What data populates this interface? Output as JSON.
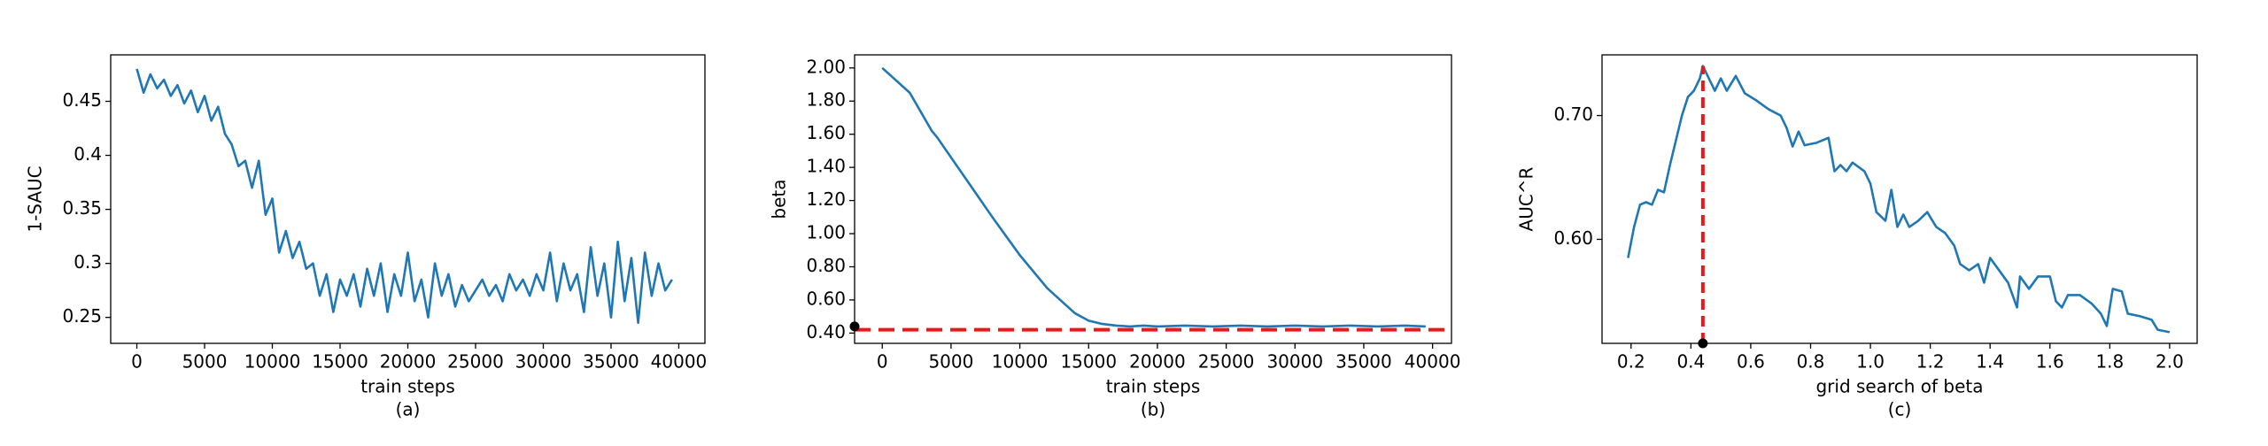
{
  "chart_data": [
    {
      "type": "line",
      "xlabel": "train steps",
      "ylabel": "1-SAUC",
      "caption": "(a)",
      "xlim": [
        -1930,
        41930
      ],
      "ylim": [
        0.226,
        0.493
      ],
      "xticks": [
        0,
        5000,
        10000,
        15000,
        20000,
        25000,
        30000,
        35000,
        40000
      ],
      "yticks": [
        0.25,
        0.3,
        0.35,
        0.4,
        0.45
      ],
      "color": "#1f77b4",
      "x": [
        0,
        500,
        1000,
        1500,
        2000,
        2500,
        3000,
        3500,
        4000,
        4500,
        5000,
        5500,
        6000,
        6500,
        7000,
        7500,
        8000,
        8500,
        9000,
        9500,
        10000,
        10500,
        11000,
        11500,
        12000,
        12500,
        13000,
        13500,
        14000,
        14500,
        15000,
        15500,
        16000,
        16500,
        17000,
        17500,
        18000,
        18500,
        19000,
        19500,
        20000,
        20500,
        21000,
        21500,
        22000,
        22500,
        23000,
        23500,
        24000,
        24500,
        25000,
        25500,
        26000,
        26500,
        27000,
        27500,
        28000,
        28500,
        29000,
        29500,
        30000,
        30500,
        31000,
        31500,
        32000,
        32500,
        33000,
        33500,
        34000,
        34500,
        35000,
        35500,
        36000,
        36500,
        37000,
        37500,
        38000,
        38500,
        39000,
        39500
      ],
      "values": [
        0.48,
        0.458,
        0.475,
        0.462,
        0.47,
        0.455,
        0.465,
        0.448,
        0.46,
        0.44,
        0.455,
        0.432,
        0.445,
        0.42,
        0.41,
        0.39,
        0.395,
        0.37,
        0.395,
        0.345,
        0.36,
        0.31,
        0.33,
        0.305,
        0.32,
        0.295,
        0.3,
        0.27,
        0.29,
        0.255,
        0.285,
        0.27,
        0.29,
        0.26,
        0.295,
        0.27,
        0.3,
        0.255,
        0.29,
        0.27,
        0.31,
        0.265,
        0.285,
        0.25,
        0.3,
        0.27,
        0.29,
        0.26,
        0.28,
        0.265,
        0.275,
        0.285,
        0.27,
        0.28,
        0.265,
        0.29,
        0.275,
        0.285,
        0.27,
        0.29,
        0.275,
        0.31,
        0.265,
        0.3,
        0.275,
        0.29,
        0.255,
        0.315,
        0.27,
        0.3,
        0.25,
        0.32,
        0.265,
        0.305,
        0.245,
        0.31,
        0.27,
        0.3,
        0.275,
        0.285
      ]
    },
    {
      "type": "line",
      "xlabel": "train steps",
      "ylabel": "beta",
      "caption": "(b)",
      "xlim": [
        -2011,
        41376
      ],
      "ylim": [
        0.338,
        2.079
      ],
      "xticks": [
        0,
        5000,
        10000,
        15000,
        20000,
        25000,
        30000,
        35000,
        40000
      ],
      "yticks": [
        {
          "value": 0.4,
          "label": "0.40"
        },
        {
          "value": 0.6,
          "label": "0.60"
        },
        {
          "value": 0.8,
          "label": "0.80"
        },
        {
          "value": 1.0,
          "label": "1.00"
        },
        {
          "value": 1.2,
          "label": "1.20"
        },
        {
          "value": 1.4,
          "label": "1.40"
        },
        {
          "value": 1.6,
          "label": "1.60"
        },
        {
          "value": 1.8,
          "label": "1.80"
        },
        {
          "value": 2.0,
          "label": "2.00"
        }
      ],
      "color": "#1f77b4",
      "x": [
        0,
        2000,
        3600,
        4000,
        6000,
        8000,
        10000,
        12000,
        14000,
        15000,
        16000,
        17000,
        18000,
        19000,
        20000,
        22000,
        24000,
        26000,
        28000,
        30000,
        32000,
        34000,
        36000,
        38000,
        39500
      ],
      "values": [
        2.0,
        1.85,
        1.62,
        1.58,
        1.34,
        1.1,
        0.87,
        0.67,
        0.52,
        0.475,
        0.455,
        0.445,
        0.44,
        0.445,
        0.44,
        0.445,
        0.44,
        0.445,
        0.44,
        0.445,
        0.44,
        0.445,
        0.44,
        0.445,
        0.44
      ],
      "ref_line": {
        "y": 0.42,
        "color": "#e8191b"
      },
      "ref_point": {
        "x": -2011,
        "y": 0.44,
        "color": "#000000"
      }
    },
    {
      "type": "line",
      "xlabel": "grid search of beta",
      "ylabel": "AUC^R",
      "caption": "(c)",
      "xlim": [
        0.103,
        2.092
      ],
      "ylim": [
        0.516,
        0.749
      ],
      "xticks": [
        0.2,
        0.4,
        0.6,
        0.8,
        {
          "value": 1.0,
          "label": "1.0"
        },
        1.2,
        1.4,
        1.6,
        1.8,
        {
          "value": 2.0,
          "label": "2.0"
        }
      ],
      "yticks": [
        {
          "value": 0.6,
          "label": "0.60"
        },
        {
          "value": 0.7,
          "label": "0.70"
        }
      ],
      "color": "#1f77b4",
      "x": [
        0.19,
        0.21,
        0.23,
        0.25,
        0.27,
        0.29,
        0.31,
        0.33,
        0.35,
        0.37,
        0.39,
        0.41,
        0.43,
        0.44,
        0.46,
        0.48,
        0.5,
        0.52,
        0.55,
        0.58,
        0.62,
        0.66,
        0.7,
        0.72,
        0.74,
        0.76,
        0.78,
        0.82,
        0.86,
        0.88,
        0.9,
        0.92,
        0.94,
        0.98,
        1.0,
        1.02,
        1.05,
        1.07,
        1.09,
        1.11,
        1.13,
        1.16,
        1.19,
        1.22,
        1.25,
        1.28,
        1.3,
        1.33,
        1.36,
        1.38,
        1.4,
        1.43,
        1.46,
        1.49,
        1.5,
        1.53,
        1.56,
        1.6,
        1.62,
        1.64,
        1.66,
        1.7,
        1.74,
        1.77,
        1.79,
        1.81,
        1.84,
        1.86,
        1.9,
        1.94,
        1.96,
        1.98,
        2.0
      ],
      "values": [
        0.585,
        0.61,
        0.628,
        0.63,
        0.628,
        0.64,
        0.638,
        0.66,
        0.68,
        0.7,
        0.715,
        0.72,
        0.73,
        0.74,
        0.73,
        0.72,
        0.73,
        0.72,
        0.732,
        0.718,
        0.712,
        0.705,
        0.7,
        0.69,
        0.675,
        0.687,
        0.676,
        0.678,
        0.682,
        0.655,
        0.66,
        0.655,
        0.662,
        0.655,
        0.645,
        0.622,
        0.615,
        0.64,
        0.61,
        0.62,
        0.61,
        0.615,
        0.622,
        0.61,
        0.605,
        0.595,
        0.58,
        0.575,
        0.58,
        0.565,
        0.585,
        0.575,
        0.565,
        0.545,
        0.57,
        0.56,
        0.57,
        0.57,
        0.55,
        0.545,
        0.555,
        0.555,
        0.548,
        0.54,
        0.53,
        0.56,
        0.558,
        0.54,
        0.538,
        0.535,
        0.527,
        0.526,
        0.525
      ],
      "ref_line": {
        "x": 0.44,
        "ymax": 0.74,
        "color": "#e8191b"
      },
      "ref_point": {
        "x": 0.44,
        "y": 0.516,
        "color": "#000000"
      }
    }
  ]
}
